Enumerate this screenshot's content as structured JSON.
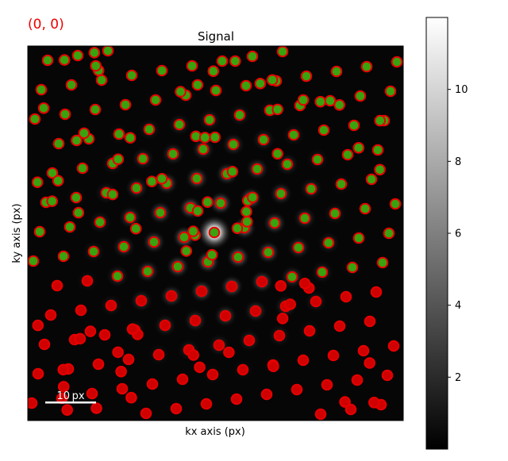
{
  "navigation_label": "(0, 0)",
  "navigation_label_color": "#ee0000",
  "chart_data": {
    "type": "heatmap",
    "title": "Signal",
    "xlabel": "kx axis (px)",
    "ylabel": "ky axis (px)",
    "scalebar_label": "10 px",
    "colormap": "gray",
    "colorbar": {
      "ticks": [
        2,
        4,
        6,
        8,
        10
      ],
      "range": [
        0,
        12
      ]
    },
    "marker_style": {
      "edgecolor": "#e60000",
      "facecolor_on_peak": "#3aa20e",
      "facecolor_off_peak": "#d00000"
    },
    "central_peak": {
      "kx": 0,
      "ky": 0
    }
  }
}
